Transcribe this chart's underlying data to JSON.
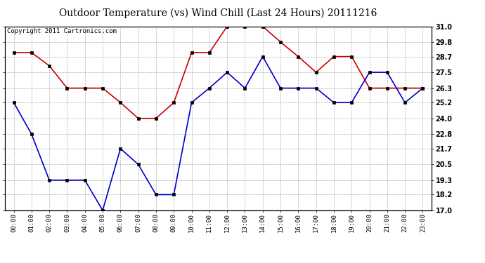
{
  "title": "Outdoor Temperature (vs) Wind Chill (Last 24 Hours) 20111216",
  "copyright": "Copyright 2011 Cartronics.com",
  "x_labels": [
    "00:00",
    "01:00",
    "02:00",
    "03:00",
    "04:00",
    "05:00",
    "06:00",
    "07:00",
    "08:00",
    "09:00",
    "10:00",
    "11:00",
    "12:00",
    "13:00",
    "14:00",
    "15:00",
    "16:00",
    "17:00",
    "18:00",
    "19:00",
    "20:00",
    "21:00",
    "22:00",
    "23:00"
  ],
  "temp_red": [
    29.0,
    29.0,
    28.0,
    26.3,
    26.3,
    26.3,
    25.2,
    24.0,
    24.0,
    25.2,
    29.0,
    29.0,
    31.0,
    31.0,
    31.0,
    29.8,
    28.7,
    27.5,
    28.7,
    28.7,
    26.3,
    26.3,
    26.3,
    26.3
  ],
  "wind_blue": [
    25.2,
    22.8,
    19.3,
    19.3,
    19.3,
    17.0,
    21.7,
    20.5,
    18.2,
    18.2,
    25.2,
    26.3,
    27.5,
    26.3,
    28.7,
    26.3,
    26.3,
    26.3,
    25.2,
    25.2,
    27.5,
    27.5,
    25.2,
    26.3
  ],
  "ylim": [
    17.0,
    31.0
  ],
  "yticks": [
    17.0,
    18.2,
    19.3,
    20.5,
    21.7,
    22.8,
    24.0,
    25.2,
    26.3,
    27.5,
    28.7,
    29.8,
    31.0
  ],
  "red_color": "#cc0000",
  "blue_color": "#0000cc",
  "bg_color": "#ffffff",
  "grid_color": "#b0b0b0",
  "title_fontsize": 10,
  "copyright_fontsize": 6.5
}
